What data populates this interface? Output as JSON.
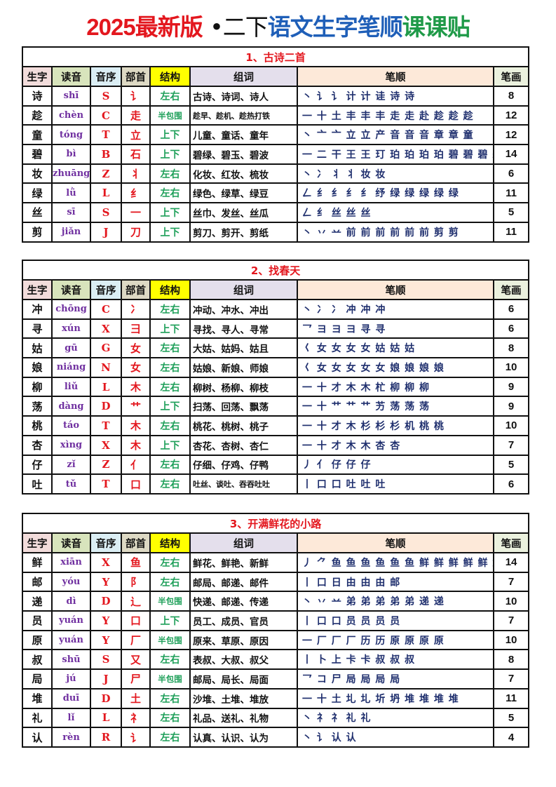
{
  "title": {
    "part1": "2025最新版",
    "dot": "•",
    "part2": "二下",
    "part3": "语文生字笔顺",
    "part4": "课课贴"
  },
  "colors": {
    "header_char": "#f2dcdb",
    "header_pinyin": "#d8e4bc",
    "header_initial": "#dbeef4",
    "header_radical": "#ddd9c4",
    "header_structure": "#ffff00",
    "header_words": "#e4dfec",
    "header_order": "#fde9d9",
    "header_count": "#ebf1de"
  },
  "headers": [
    "生字",
    "读音",
    "音序",
    "部首",
    "结构",
    "组词",
    "笔顺",
    "笔画"
  ],
  "sections": [
    {
      "title": "1、古诗二首",
      "rows": [
        {
          "char": "诗",
          "pinyin": "shī",
          "initial": "S",
          "radical": "讠",
          "structure": "左右",
          "words": "古诗、诗词、诗人",
          "order": "丶 讠 讠 计 计 诖 诗 诗",
          "count": "8"
        },
        {
          "char": "趁",
          "pinyin": "chèn",
          "initial": "C",
          "radical": "走",
          "structure": "半包围",
          "words": "趁早、趁机、趁热打铁",
          "order": "一 十 土 丰 丰 丰 走 走 赴 趁 趁 趁",
          "count": "12"
        },
        {
          "char": "童",
          "pinyin": "tóng",
          "initial": "T",
          "radical": "立",
          "structure": "上下",
          "words": "儿童、童话、童年",
          "order": "丶 亠 亠 立 立 产 音 音 音 章 章 童",
          "count": "12"
        },
        {
          "char": "碧",
          "pinyin": "bì",
          "initial": "B",
          "radical": "石",
          "structure": "上下",
          "words": "碧绿、碧玉、碧波",
          "order": "一 二 干 王 王 玎 珀 珀 珀 珀 碧 碧 碧 碧",
          "count": "14"
        },
        {
          "char": "妆",
          "pinyin": "zhuāng",
          "initial": "Z",
          "radical": "丬",
          "structure": "左右",
          "words": "化妆、红妆、梳妆",
          "order": "丶 冫 丬 丬 妆 妆",
          "count": "6"
        },
        {
          "char": "绿",
          "pinyin": "lǜ",
          "initial": "L",
          "radical": "纟",
          "structure": "左右",
          "words": "绿色、绿草、绿豆",
          "order": "𠃋 纟 纟 纟 纟 纾 绿 绿 绿 绿 绿",
          "count": "11"
        },
        {
          "char": "丝",
          "pinyin": "sī",
          "initial": "S",
          "radical": "一",
          "structure": "上下",
          "words": "丝巾、发丝、丝瓜",
          "order": "𠃋 纟 丝 丝 丝",
          "count": "5"
        },
        {
          "char": "剪",
          "pinyin": "jiǎn",
          "initial": "J",
          "radical": "刀",
          "structure": "上下",
          "words": "剪刀、剪开、剪纸",
          "order": "丶 丷 䒑 前 前 前 前 前 前 剪 剪",
          "count": "11"
        }
      ]
    },
    {
      "title": "2、找春天",
      "rows": [
        {
          "char": "冲",
          "pinyin": "chōng",
          "initial": "C",
          "radical": "冫",
          "structure": "左右",
          "words": "冲动、冲水、冲出",
          "order": "丶 冫 冫 冲 冲 冲",
          "count": "6"
        },
        {
          "char": "寻",
          "pinyin": "xún",
          "initial": "X",
          "radical": "彐",
          "structure": "上下",
          "words": "寻找、寻人、寻常",
          "order": "乛 ヨ ヨ ヨ 寻 寻",
          "count": "6"
        },
        {
          "char": "姑",
          "pinyin": "gū",
          "initial": "G",
          "radical": "女",
          "structure": "左右",
          "words": "大姑、姑妈、姑且",
          "order": "𡿨 女 女 女 女 姑 姑 姑",
          "count": "8"
        },
        {
          "char": "娘",
          "pinyin": "niáng",
          "initial": "N",
          "radical": "女",
          "structure": "左右",
          "words": "姑娘、新娘、师娘",
          "order": "𡿨 女 女 女 女 女 娘 娘 娘 娘",
          "count": "10"
        },
        {
          "char": "柳",
          "pinyin": "liǔ",
          "initial": "L",
          "radical": "木",
          "structure": "左右",
          "words": "柳树、杨柳、柳枝",
          "order": "一 十 才 木 木 杧 柳 柳 柳",
          "count": "9"
        },
        {
          "char": "荡",
          "pinyin": "dàng",
          "initial": "D",
          "radical": "艹",
          "structure": "上下",
          "words": "扫荡、回荡、飘荡",
          "order": "一 十 艹 艹 艹 艻 荡 荡 荡",
          "count": "9"
        },
        {
          "char": "桃",
          "pinyin": "táo",
          "initial": "T",
          "radical": "木",
          "structure": "左右",
          "words": "桃花、桃树、桃子",
          "order": "一 十 才 木 杉 杉 杉 机 桃 桃",
          "count": "10"
        },
        {
          "char": "杏",
          "pinyin": "xìng",
          "initial": "X",
          "radical": "木",
          "structure": "上下",
          "words": "杏花、杏树、杏仁",
          "order": "一 十 才 木 木 杏 杏",
          "count": "7"
        },
        {
          "char": "仔",
          "pinyin": "zǐ",
          "initial": "Z",
          "radical": "亻",
          "structure": "左右",
          "words": "仔细、仔鸡、仔鸭",
          "order": "丿 亻 仔 仔 仔",
          "count": "5"
        },
        {
          "char": "吐",
          "pinyin": "tǔ",
          "initial": "T",
          "radical": "口",
          "structure": "左右",
          "words": "吐丝、谈吐、吞吞吐吐",
          "order": "丨 口 口 吐 吐 吐",
          "count": "6"
        }
      ]
    },
    {
      "title": "3、开满鲜花的小路",
      "rows": [
        {
          "char": "鲜",
          "pinyin": "xiān",
          "initial": "X",
          "radical": "鱼",
          "structure": "左右",
          "words": "鲜花、鲜艳、新鲜",
          "order": "丿 ⺈ 鱼 鱼 鱼 鱼 鱼 鱼 鲜 鲜 鲜 鲜 鲜 鲜",
          "count": "14"
        },
        {
          "char": "邮",
          "pinyin": "yóu",
          "initial": "Y",
          "radical": "阝",
          "structure": "左右",
          "words": "邮局、邮递、邮件",
          "order": "丨 口 日 由 由 由 邮",
          "count": "7"
        },
        {
          "char": "递",
          "pinyin": "dì",
          "initial": "D",
          "radical": "辶",
          "structure": "半包围",
          "words": "快递、邮递、传递",
          "order": "丶 丷 䒑 弟 弟 弟 弟 弟 递 递",
          "count": "10"
        },
        {
          "char": "员",
          "pinyin": "yuán",
          "initial": "Y",
          "radical": "口",
          "structure": "上下",
          "words": "员工、成员、官员",
          "order": "丨 口 口 员 员 员 员",
          "count": "7"
        },
        {
          "char": "原",
          "pinyin": "yuán",
          "initial": "Y",
          "radical": "厂",
          "structure": "半包围",
          "words": "原来、草原、原因",
          "order": "一 厂 厂 厂 历 历 原 原 原 原",
          "count": "10"
        },
        {
          "char": "叔",
          "pinyin": "shū",
          "initial": "S",
          "radical": "又",
          "structure": "左右",
          "words": "表叔、大叔、叔父",
          "order": "丨 卜 上 卡 卡 叔 叔 叔",
          "count": "8"
        },
        {
          "char": "局",
          "pinyin": "jú",
          "initial": "J",
          "radical": "尸",
          "structure": "半包围",
          "words": "邮局、局长、局面",
          "order": "乛 コ 尸 局 局 局 局",
          "count": "7"
        },
        {
          "char": "堆",
          "pinyin": "duī",
          "initial": "D",
          "radical": "土",
          "structure": "左右",
          "words": "沙堆、土堆、堆放",
          "order": "一 十 土 圠 圠 圻 坍 堆 堆 堆 堆",
          "count": "11"
        },
        {
          "char": "礼",
          "pinyin": "lǐ",
          "initial": "L",
          "radical": "礻",
          "structure": "左右",
          "words": "礼品、送礼、礼物",
          "order": "丶 礻 礻 礼 礼",
          "count": "5"
        },
        {
          "char": "认",
          "pinyin": "rèn",
          "initial": "R",
          "radical": "讠",
          "structure": "左右",
          "words": "认真、认识、认为",
          "order": "丶 讠 认 认",
          "count": "4"
        }
      ]
    }
  ]
}
